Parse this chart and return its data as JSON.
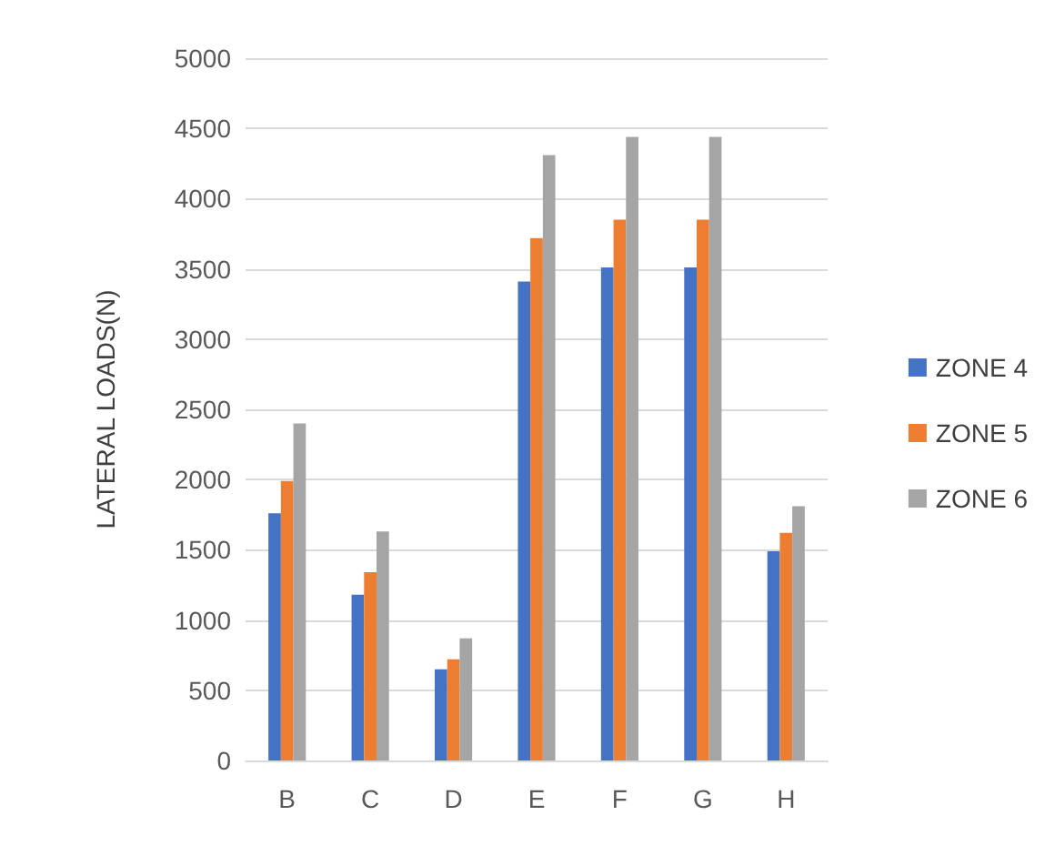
{
  "chart_data": {
    "type": "bar",
    "ylabel": "LATERAL LOADS(N)",
    "categories": [
      "B",
      "C",
      "D",
      "E",
      "F",
      "G",
      "H"
    ],
    "series": [
      {
        "name": "ZONE 4",
        "color": "#4472c4",
        "values": [
          1760,
          1180,
          650,
          3410,
          3510,
          3510,
          1490
        ]
      },
      {
        "name": "ZONE 5",
        "color": "#ed7d31",
        "values": [
          1990,
          1340,
          720,
          3720,
          3850,
          3850,
          1620
        ]
      },
      {
        "name": "ZONE 6",
        "color": "#a5a5a5",
        "values": [
          2400,
          1630,
          870,
          4310,
          4440,
          4440,
          1810
        ]
      }
    ],
    "ylim": [
      0,
      5000
    ],
    "yticks": [
      0,
      500,
      1000,
      1500,
      2000,
      2500,
      3000,
      3500,
      4000,
      4500,
      5000
    ],
    "grid": "y",
    "legend": "right"
  }
}
